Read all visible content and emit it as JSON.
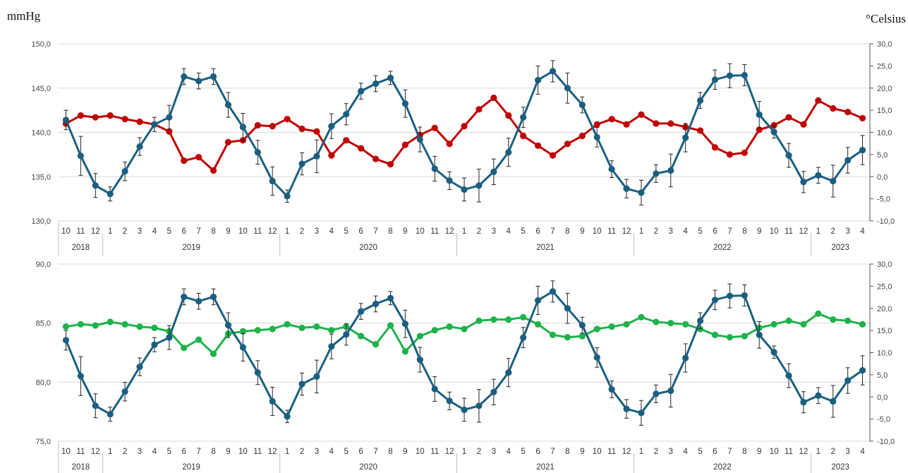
{
  "units": {
    "left": "mmHg",
    "right": "°Celsius"
  },
  "colors": {
    "temperature": "#1a5f80",
    "systolic": "#c00000",
    "diastolic": "#1db34a",
    "grid": "#d9d9d9",
    "axis": "#bfbfbf"
  },
  "chart_data": [
    {
      "type": "line",
      "categories": [
        "10",
        "11",
        "12",
        "1",
        "2",
        "3",
        "4",
        "5",
        "6",
        "7",
        "8",
        "9",
        "10",
        "11",
        "12",
        "1",
        "2",
        "3",
        "4",
        "5",
        "6",
        "7",
        "8",
        "9",
        "10",
        "11",
        "12",
        "1",
        "2",
        "3",
        "4",
        "5",
        "6",
        "7",
        "8",
        "9",
        "10",
        "11",
        "12",
        "1",
        "2",
        "3",
        "4",
        "5",
        "6",
        "7",
        "8",
        "9",
        "10",
        "11",
        "12",
        "1",
        "2",
        "3",
        "4"
      ],
      "years": [
        {
          "label": "2018",
          "count": 3
        },
        {
          "label": "2019",
          "count": 12
        },
        {
          "label": "2020",
          "count": 12
        },
        {
          "label": "2021",
          "count": 12
        },
        {
          "label": "2022",
          "count": 12
        },
        {
          "label": "2023",
          "count": 4
        }
      ],
      "ylim": [
        130,
        150
      ],
      "yticks": [
        "150,0",
        "145,0",
        "140,0",
        "135,0",
        "130,0"
      ],
      "y2lim": [
        -10,
        30
      ],
      "y2ticks": [
        "30,0",
        "25,0",
        "20,0",
        "15,0",
        "10,0",
        "5,0",
        "0,0",
        "-5,0",
        "-10,0"
      ],
      "series": [
        {
          "axis": "left",
          "colorKey": "systolic",
          "values": [
            141.0,
            141.9,
            141.7,
            141.9,
            141.5,
            141.2,
            140.9,
            140.1,
            136.8,
            137.2,
            135.7,
            138.9,
            139.1,
            140.8,
            140.7,
            141.5,
            140.4,
            140.1,
            137.4,
            139.1,
            138.2,
            137.0,
            136.4,
            138.6,
            139.7,
            140.5,
            138.7,
            140.7,
            142.6,
            143.9,
            141.9,
            139.6,
            138.5,
            137.4,
            138.7,
            139.6,
            140.9,
            141.5,
            140.9,
            142.0,
            141.0,
            141.0,
            140.6,
            140.2,
            138.3,
            137.5,
            137.7,
            140.3,
            140.8,
            141.7,
            140.9,
            143.6,
            142.7,
            142.3,
            141.6
          ],
          "errors": []
        },
        {
          "axis": "right",
          "colorKey": "temperature",
          "values": [
            12.8,
            4.7,
            -2.0,
            -3.9,
            1.2,
            6.8,
            11.8,
            13.4,
            22.6,
            21.6,
            22.6,
            16.2,
            11.2,
            5.5,
            -1.0,
            -4.4,
            2.9,
            4.6,
            11.4,
            14.1,
            19.3,
            21.0,
            22.3,
            16.5,
            8.4,
            1.8,
            -0.9,
            -2.9,
            -2.0,
            1.1,
            5.5,
            13.4,
            21.8,
            23.8,
            20.0,
            16.2,
            8.9,
            1.7,
            -2.7,
            -3.6,
            0.7,
            1.4,
            8.8,
            17.2,
            21.9,
            22.8,
            22.9,
            14.0,
            10.1,
            4.8,
            -1.2,
            0.3,
            -1.0,
            3.7,
            6.0
          ],
          "errors": [
            2.2,
            4.4,
            2.7,
            1.6,
            2.1,
            2.0,
            1.6,
            2.7,
            1.8,
            1.8,
            1.8,
            2.8,
            3.1,
            2.7,
            3.2,
            1.4,
            2.5,
            3.7,
            2.8,
            2.4,
            1.8,
            1.8,
            1.5,
            3.1,
            2.8,
            2.8,
            2.0,
            2.6,
            3.7,
            2.9,
            3.2,
            2.3,
            3.2,
            2.4,
            3.4,
            1.8,
            2.2,
            1.9,
            2.1,
            2.8,
            2.0,
            3.7,
            3.2,
            1.8,
            2.2,
            2.7,
            2.4,
            3.0,
            1.4,
            2.7,
            2.4,
            1.8,
            3.6,
            2.9,
            3.3
          ]
        }
      ]
    },
    {
      "type": "line",
      "categories": [
        "10",
        "11",
        "12",
        "1",
        "2",
        "3",
        "4",
        "5",
        "6",
        "7",
        "8",
        "9",
        "10",
        "11",
        "12",
        "1",
        "2",
        "3",
        "4",
        "5",
        "6",
        "7",
        "8",
        "9",
        "10",
        "11",
        "12",
        "1",
        "2",
        "3",
        "4",
        "5",
        "6",
        "7",
        "8",
        "9",
        "10",
        "11",
        "12",
        "1",
        "2",
        "3",
        "4",
        "5",
        "6",
        "7",
        "8",
        "9",
        "10",
        "11",
        "12",
        "1",
        "2",
        "3",
        "4"
      ],
      "years": [
        {
          "label": "2018",
          "count": 3
        },
        {
          "label": "2019",
          "count": 12
        },
        {
          "label": "2020",
          "count": 12
        },
        {
          "label": "2021",
          "count": 12
        },
        {
          "label": "2022",
          "count": 12
        },
        {
          "label": "2023",
          "count": 4
        }
      ],
      "ylim": [
        75,
        90
      ],
      "yticks": [
        "90,0",
        "85,0",
        "80,0",
        "75,0"
      ],
      "y2lim": [
        -10,
        30
      ],
      "y2ticks": [
        "30,0",
        "25,0",
        "20,0",
        "15,0",
        "10,0",
        "5,0",
        "0,0",
        "-5,0",
        "-10,0"
      ],
      "series": [
        {
          "axis": "left",
          "colorKey": "diastolic",
          "values": [
            84.7,
            84.9,
            84.8,
            85.1,
            84.9,
            84.7,
            84.6,
            84.3,
            82.9,
            83.6,
            82.4,
            84.1,
            84.3,
            84.4,
            84.5,
            84.9,
            84.6,
            84.7,
            84.4,
            84.7,
            83.9,
            83.2,
            84.8,
            82.6,
            83.9,
            84.4,
            84.7,
            84.5,
            85.2,
            85.3,
            85.3,
            85.5,
            84.9,
            84.0,
            83.8,
            83.9,
            84.5,
            84.7,
            84.9,
            85.5,
            85.1,
            85.0,
            84.9,
            84.5,
            84.0,
            83.8,
            83.9,
            84.6,
            84.9,
            85.2,
            84.9,
            85.8,
            85.3,
            85.2,
            84.9
          ],
          "errors": []
        },
        {
          "axis": "right",
          "colorKey": "temperature",
          "values": [
            12.8,
            4.7,
            -2.0,
            -3.9,
            1.2,
            6.8,
            11.8,
            13.4,
            22.6,
            21.6,
            22.6,
            16.2,
            11.2,
            5.5,
            -1.0,
            -4.4,
            2.9,
            4.6,
            11.4,
            14.1,
            19.3,
            21.0,
            22.3,
            16.5,
            8.4,
            1.8,
            -0.9,
            -2.9,
            -2.0,
            1.1,
            5.5,
            13.4,
            21.8,
            23.8,
            20.0,
            16.2,
            8.9,
            1.7,
            -2.7,
            -3.6,
            0.7,
            1.4,
            8.8,
            17.2,
            21.9,
            22.8,
            22.9,
            14.0,
            10.1,
            4.8,
            -1.2,
            0.3,
            -1.0,
            3.7,
            6.0
          ],
          "errors": [
            2.2,
            4.4,
            2.7,
            1.6,
            2.1,
            2.0,
            1.6,
            2.7,
            1.8,
            1.8,
            1.8,
            2.8,
            3.1,
            2.7,
            3.2,
            1.4,
            2.5,
            3.7,
            2.8,
            2.4,
            1.8,
            1.8,
            1.5,
            3.1,
            2.8,
            2.8,
            2.0,
            2.6,
            3.7,
            2.9,
            3.2,
            2.3,
            3.2,
            2.4,
            3.4,
            1.8,
            2.2,
            1.9,
            2.1,
            2.8,
            2.0,
            3.7,
            3.2,
            1.8,
            2.2,
            2.7,
            2.4,
            3.0,
            1.4,
            2.7,
            2.4,
            1.8,
            3.6,
            2.9,
            3.3
          ]
        }
      ]
    }
  ]
}
